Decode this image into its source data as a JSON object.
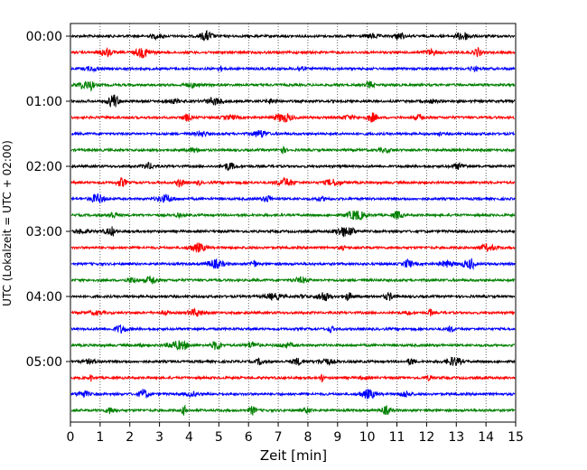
{
  "chart_data": {
    "type": "line",
    "title": "",
    "xlabel": "Zeit  [min]",
    "ylabel": "UTC (Lokalzeit = UTC + 02:00)",
    "xlim": [
      0,
      15
    ],
    "x_ticks": [
      "0",
      "1",
      "2",
      "3",
      "4",
      "5",
      "6",
      "7",
      "8",
      "9",
      "10",
      "11",
      "12",
      "13",
      "14",
      "15"
    ],
    "y_ticks": [
      "00:00",
      "01:00",
      "02:00",
      "03:00",
      "04:00",
      "05:00"
    ],
    "row_interval_minutes": 15,
    "rows_count": 24,
    "row_colors": [
      "#000000",
      "#ff0000",
      "#0000ff",
      "#008000"
    ],
    "grid": "vertical dotted lines at each minute",
    "legend": "none"
  }
}
